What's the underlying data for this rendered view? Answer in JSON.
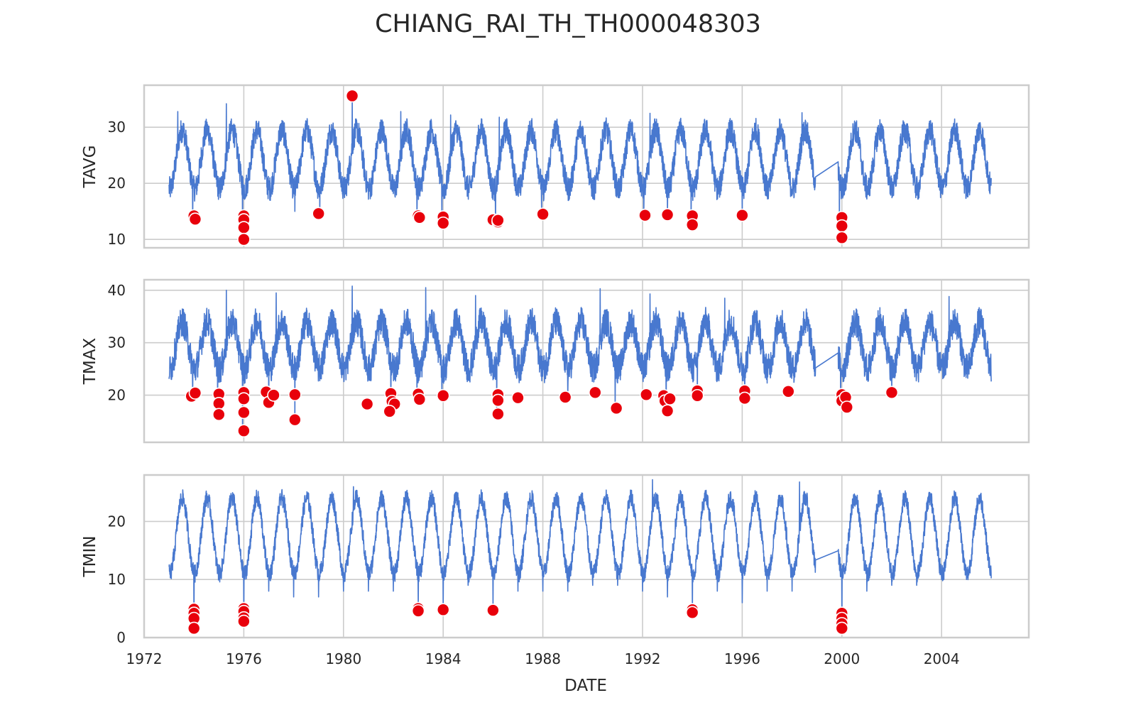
{
  "chart_data": {
    "type": "line",
    "title": "CHIANG_RAI_TH_TH000048303",
    "xlabel": "DATE",
    "x_range": [
      1972.0,
      2007.5
    ],
    "x_ticks": [
      1972,
      1976,
      1980,
      1984,
      1988,
      1992,
      1996,
      2000,
      2004
    ],
    "data_start": 1973.0,
    "data_end": 2006.0,
    "gap": [
      1998.95,
      1999.85
    ],
    "grid": true,
    "line_color": "#4878cf",
    "outlier_color": "#e8000b",
    "panels": [
      {
        "id": "tavg",
        "ylabel": "TAVG",
        "ylim": [
          8.5,
          37.5
        ],
        "yticks": [
          10,
          20,
          30
        ],
        "seasonal": {
          "low": 19,
          "high": 29.5,
          "noise": 2.2
        },
        "annual_dips": [
          [
            1973.95,
            13
          ],
          [
            1975.95,
            10
          ],
          [
            1978.05,
            15
          ],
          [
            1979.05,
            15
          ],
          [
            1982.95,
            14
          ],
          [
            1983.95,
            13
          ],
          [
            1986.1,
            13
          ],
          [
            1987.95,
            15
          ],
          [
            1992.05,
            14
          ],
          [
            1993.0,
            14
          ],
          [
            1993.95,
            13
          ],
          [
            1996.0,
            14
          ],
          [
            1999.9,
            10
          ]
        ],
        "peaks": [
          [
            1975.3,
            34.2
          ],
          [
            1980.35,
            35.6
          ],
          [
            1982.3,
            32.8
          ],
          [
            1992.3,
            32.5
          ],
          [
            1998.4,
            32.6
          ],
          [
            1973.35,
            32.8
          ],
          [
            1984.3,
            32.2
          ],
          [
            1986.25,
            31.8
          ]
        ],
        "outliers": [
          {
            "x": 1974.0,
            "y": 14.2
          },
          {
            "x": 1974.05,
            "y": 13.6
          },
          {
            "x": 1976.0,
            "y": 14.2
          },
          {
            "x": 1976.0,
            "y": 13.5
          },
          {
            "x": 1976.0,
            "y": 12.1
          },
          {
            "x": 1976.0,
            "y": 10.0
          },
          {
            "x": 1979.0,
            "y": 14.6
          },
          {
            "x": 1980.35,
            "y": 35.6
          },
          {
            "x": 1983.0,
            "y": 14.2
          },
          {
            "x": 1983.05,
            "y": 13.9
          },
          {
            "x": 1984.0,
            "y": 14.0
          },
          {
            "x": 1984.0,
            "y": 12.9
          },
          {
            "x": 1986.0,
            "y": 13.5
          },
          {
            "x": 1986.2,
            "y": 13.1
          },
          {
            "x": 1986.2,
            "y": 13.4
          },
          {
            "x": 1988.0,
            "y": 14.5
          },
          {
            "x": 1992.1,
            "y": 14.3
          },
          {
            "x": 1993.0,
            "y": 14.4
          },
          {
            "x": 1994.0,
            "y": 14.2
          },
          {
            "x": 1994.0,
            "y": 12.6
          },
          {
            "x": 1996.0,
            "y": 14.3
          },
          {
            "x": 2000.0,
            "y": 13.9
          },
          {
            "x": 2000.0,
            "y": 12.4
          },
          {
            "x": 2000.0,
            "y": 10.3
          }
        ]
      },
      {
        "id": "tmax",
        "ylabel": "TMAX",
        "ylim": [
          11.0,
          42.0
        ],
        "yticks": [
          20,
          30,
          40
        ],
        "seasonal": {
          "low": 25,
          "high": 34,
          "noise": 2.8
        },
        "annual_dips": [
          [
            1973.95,
            20
          ],
          [
            1974.95,
            16
          ],
          [
            1975.95,
            13
          ],
          [
            1977.0,
            19
          ],
          [
            1978.05,
            15
          ],
          [
            1981.9,
            17
          ],
          [
            1982.95,
            19
          ],
          [
            1983.95,
            20
          ],
          [
            1986.15,
            16
          ],
          [
            1989.0,
            20
          ],
          [
            1990.9,
            17.5
          ],
          [
            1992.95,
            17
          ],
          [
            1994.2,
            20
          ],
          [
            1996.1,
            19
          ],
          [
            1999.95,
            18
          ],
          [
            2002.0,
            20.5
          ]
        ],
        "peaks": [
          [
            1975.3,
            40
          ],
          [
            1980.35,
            40.8
          ],
          [
            1983.3,
            40.5
          ],
          [
            1990.3,
            40.3
          ],
          [
            1995.3,
            38.5
          ],
          [
            2004.3,
            38.8
          ],
          [
            1992.3,
            39.3
          ],
          [
            1985.3,
            39
          ],
          [
            1977.3,
            39.5
          ]
        ],
        "outliers": [
          {
            "x": 1973.9,
            "y": 19.8
          },
          {
            "x": 1974.05,
            "y": 20.4
          },
          {
            "x": 1975.0,
            "y": 20.2
          },
          {
            "x": 1975.0,
            "y": 18.4
          },
          {
            "x": 1975.0,
            "y": 16.3
          },
          {
            "x": 1976.0,
            "y": 20.5
          },
          {
            "x": 1976.0,
            "y": 19.3
          },
          {
            "x": 1976.0,
            "y": 16.7
          },
          {
            "x": 1976.0,
            "y": 13.2
          },
          {
            "x": 1976.9,
            "y": 20.6
          },
          {
            "x": 1977.0,
            "y": 18.6
          },
          {
            "x": 1977.2,
            "y": 20.0
          },
          {
            "x": 1978.05,
            "y": 20.1
          },
          {
            "x": 1978.05,
            "y": 15.3
          },
          {
            "x": 1980.95,
            "y": 18.3
          },
          {
            "x": 1981.9,
            "y": 20.3
          },
          {
            "x": 1981.95,
            "y": 18.8
          },
          {
            "x": 1982.05,
            "y": 18.3
          },
          {
            "x": 1981.85,
            "y": 16.9
          },
          {
            "x": 1983.0,
            "y": 20.2
          },
          {
            "x": 1983.05,
            "y": 19.2
          },
          {
            "x": 1984.0,
            "y": 19.9
          },
          {
            "x": 1986.2,
            "y": 20.1
          },
          {
            "x": 1986.2,
            "y": 19.0
          },
          {
            "x": 1986.2,
            "y": 16.4
          },
          {
            "x": 1987.0,
            "y": 19.5
          },
          {
            "x": 1988.9,
            "y": 19.6
          },
          {
            "x": 1990.1,
            "y": 20.5
          },
          {
            "x": 1990.95,
            "y": 17.5
          },
          {
            "x": 1992.15,
            "y": 20.1
          },
          {
            "x": 1992.85,
            "y": 19.9
          },
          {
            "x": 1992.9,
            "y": 18.9
          },
          {
            "x": 1993.1,
            "y": 19.3
          },
          {
            "x": 1993.0,
            "y": 17.0
          },
          {
            "x": 1994.2,
            "y": 20.8
          },
          {
            "x": 1994.2,
            "y": 19.9
          },
          {
            "x": 1996.1,
            "y": 20.8
          },
          {
            "x": 1996.1,
            "y": 19.4
          },
          {
            "x": 1997.85,
            "y": 20.7
          },
          {
            "x": 2000.0,
            "y": 20.1
          },
          {
            "x": 2000.0,
            "y": 18.9
          },
          {
            "x": 2000.15,
            "y": 19.6
          },
          {
            "x": 2000.2,
            "y": 17.7
          },
          {
            "x": 2002.0,
            "y": 20.5
          }
        ]
      },
      {
        "id": "tmin",
        "ylabel": "TMIN",
        "ylim": [
          0.0,
          28.0
        ],
        "yticks": [
          0,
          10,
          20
        ],
        "seasonal": {
          "low": 11,
          "high": 24,
          "noise": 1.5
        },
        "annual_dips": [
          [
            1974.0,
            1.5
          ],
          [
            1976.0,
            3
          ],
          [
            1977.0,
            8
          ],
          [
            1978.0,
            7
          ],
          [
            1979.0,
            7
          ],
          [
            1980.0,
            8
          ],
          [
            1981.0,
            8
          ],
          [
            1982.0,
            8
          ],
          [
            1983.0,
            5
          ],
          [
            1984.0,
            5
          ],
          [
            1985.0,
            9
          ],
          [
            1986.0,
            5
          ],
          [
            1987.0,
            8
          ],
          [
            1988.0,
            8
          ],
          [
            1989.0,
            8
          ],
          [
            1990.0,
            9
          ],
          [
            1991.0,
            9
          ],
          [
            1992.0,
            8
          ],
          [
            1993.0,
            7
          ],
          [
            1994.0,
            4
          ],
          [
            1995.0,
            8
          ],
          [
            1996.0,
            6
          ],
          [
            1997.0,
            8
          ],
          [
            1998.0,
            8
          ],
          [
            2000.0,
            1.5
          ],
          [
            2001.0,
            8
          ],
          [
            2002.0,
            9
          ],
          [
            2003.0,
            9
          ],
          [
            2004.0,
            10
          ],
          [
            2005.0,
            10
          ]
        ],
        "peaks": [
          [
            1992.4,
            27.2
          ],
          [
            1998.3,
            26.8
          ],
          [
            1980.4,
            26.0
          ]
        ],
        "outliers": [
          {
            "x": 1974.0,
            "y": 4.9
          },
          {
            "x": 1974.0,
            "y": 4.2
          },
          {
            "x": 1974.0,
            "y": 3.3
          },
          {
            "x": 1974.0,
            "y": 1.6
          },
          {
            "x": 1976.0,
            "y": 5.0
          },
          {
            "x": 1976.0,
            "y": 4.5
          },
          {
            "x": 1976.0,
            "y": 3.4
          },
          {
            "x": 1976.0,
            "y": 2.8
          },
          {
            "x": 1983.0,
            "y": 5.0
          },
          {
            "x": 1983.0,
            "y": 4.6
          },
          {
            "x": 1984.0,
            "y": 4.8
          },
          {
            "x": 1986.0,
            "y": 4.7
          },
          {
            "x": 1994.0,
            "y": 4.8
          },
          {
            "x": 1994.0,
            "y": 4.3
          },
          {
            "x": 2000.0,
            "y": 4.2
          },
          {
            "x": 2000.0,
            "y": 3.3
          },
          {
            "x": 2000.0,
            "y": 2.4
          },
          {
            "x": 2000.0,
            "y": 1.6
          }
        ]
      }
    ]
  }
}
